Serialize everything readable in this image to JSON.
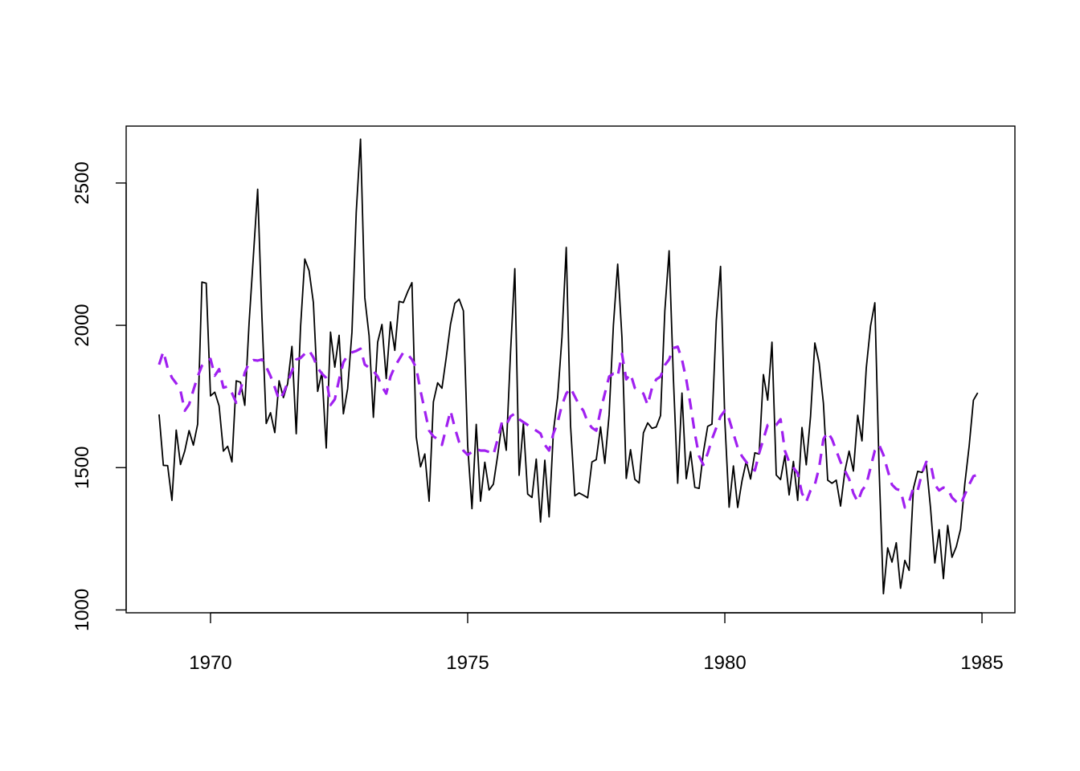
{
  "chart_data": {
    "type": "line",
    "title": "",
    "xlabel": "",
    "ylabel": "",
    "xlim": [
      1968.36,
      1985.64
    ],
    "ylim": [
      990,
      2700
    ],
    "x_ticks": [
      1970,
      1975,
      1980,
      1985
    ],
    "x_tick_labels": [
      "1970",
      "1975",
      "1980",
      "1985"
    ],
    "y_ticks": [
      1000,
      1500,
      2000,
      2500
    ],
    "y_tick_labels": [
      "1000",
      "1500",
      "2000",
      "2500"
    ],
    "grid": false,
    "legend": "none",
    "x_start": 1969.0,
    "x_step": 0.08333333,
    "series": [
      {
        "color": "#000000",
        "line_style": "solid",
        "values": [
          1687,
          1508,
          1507,
          1385,
          1632,
          1511,
          1559,
          1630,
          1579,
          1653,
          2152,
          2148,
          1752,
          1765,
          1717,
          1558,
          1575,
          1520,
          1805,
          1800,
          1719,
          2008,
          2242,
          2478,
          2030,
          1655,
          1693,
          1623,
          1805,
          1746,
          1795,
          1926,
          1619,
          1992,
          2233,
          2192,
          2080,
          1768,
          1835,
          1569,
          1976,
          1853,
          1965,
          1689,
          1778,
          1976,
          2397,
          2654,
          2097,
          1963,
          1677,
          1941,
          2003,
          1813,
          2012,
          1912,
          2084,
          2080,
          2118,
          2150,
          1608,
          1503,
          1548,
          1382,
          1731,
          1798,
          1779,
          1887,
          2004,
          2077,
          2092,
          2051,
          1577,
          1356,
          1652,
          1382,
          1519,
          1421,
          1442,
          1543,
          1656,
          1561,
          1905,
          2199,
          1473,
          1655,
          1407,
          1395,
          1530,
          1309,
          1526,
          1327,
          1627,
          1748,
          1958,
          2274,
          1648,
          1401,
          1411,
          1403,
          1394,
          1520,
          1528,
          1643,
          1515,
          1685,
          2000,
          2215,
          1956,
          1462,
          1563,
          1459,
          1446,
          1622,
          1657,
          1638,
          1643,
          1683,
          2050,
          2262,
          1813,
          1445,
          1762,
          1461,
          1556,
          1431,
          1427,
          1554,
          1645,
          1653,
          2016,
          2207,
          1665,
          1361,
          1506,
          1360,
          1453,
          1522,
          1460,
          1552,
          1548,
          1827,
          1737,
          1941,
          1474,
          1458,
          1542,
          1404,
          1522,
          1385,
          1641,
          1510,
          1681,
          1938,
          1868,
          1726,
          1456,
          1445,
          1456,
          1365,
          1487,
          1558,
          1488,
          1684,
          1594,
          1850,
          1998,
          2079,
          1494,
          1057,
          1218,
          1168,
          1236,
          1076,
          1174,
          1139,
          1427,
          1487,
          1483,
          1513,
          1357,
          1165,
          1282,
          1110,
          1297,
          1185,
          1222,
          1284,
          1444,
          1575,
          1737,
          1763
        ]
      },
      {
        "color": "#a020f0",
        "line_style": "dashed",
        "values": [
          1862,
          1908,
          1850,
          1816,
          1796,
          1770,
          1700,
          1722,
          1772,
          1820,
          1858,
          1872,
          1882,
          1823,
          1846,
          1781,
          1785,
          1762,
          1728,
          1773,
          1834,
          1868,
          1878,
          1876,
          1880,
          1854,
          1822,
          1782,
          1738,
          1760,
          1800,
          1839,
          1880,
          1885,
          1900,
          1912,
          1887,
          1850,
          1830,
          1815,
          1720,
          1740,
          1810,
          1870,
          1895,
          1905,
          1910,
          1918,
          1862,
          1851,
          1840,
          1820,
          1785,
          1760,
          1820,
          1855,
          1880,
          1905,
          1898,
          1880,
          1850,
          1770,
          1700,
          1630,
          1610,
          1600,
          1580,
          1640,
          1700,
          1640,
          1590,
          1560,
          1545,
          1555,
          1565,
          1560,
          1560,
          1555,
          1545,
          1600,
          1660,
          1650,
          1680,
          1690,
          1670,
          1660,
          1650,
          1640,
          1630,
          1620,
          1580,
          1560,
          1620,
          1660,
          1720,
          1760,
          1780,
          1750,
          1720,
          1700,
          1660,
          1640,
          1630,
          1700,
          1760,
          1820,
          1830,
          1820,
          1900,
          1810,
          1830,
          1780,
          1770,
          1760,
          1720,
          1780,
          1810,
          1820,
          1860,
          1880,
          1920,
          1925,
          1880,
          1810,
          1720,
          1620,
          1540,
          1510,
          1550,
          1600,
          1640,
          1680,
          1700,
          1670,
          1620,
          1570,
          1540,
          1520,
          1500,
          1490,
          1550,
          1600,
          1650,
          1650,
          1650,
          1670,
          1560,
          1520,
          1500,
          1480,
          1410,
          1380,
          1420,
          1440,
          1500,
          1600,
          1625,
          1600,
          1560,
          1520,
          1490,
          1460,
          1410,
          1380,
          1420,
          1440,
          1500,
          1560,
          1580,
          1545,
          1490,
          1440,
          1425,
          1420,
          1360,
          1380,
          1430,
          1420,
          1480,
          1520,
          1515,
          1440,
          1420,
          1430,
          1425,
          1395,
          1380,
          1370,
          1405,
          1440,
          1470,
          1475
        ]
      }
    ]
  }
}
